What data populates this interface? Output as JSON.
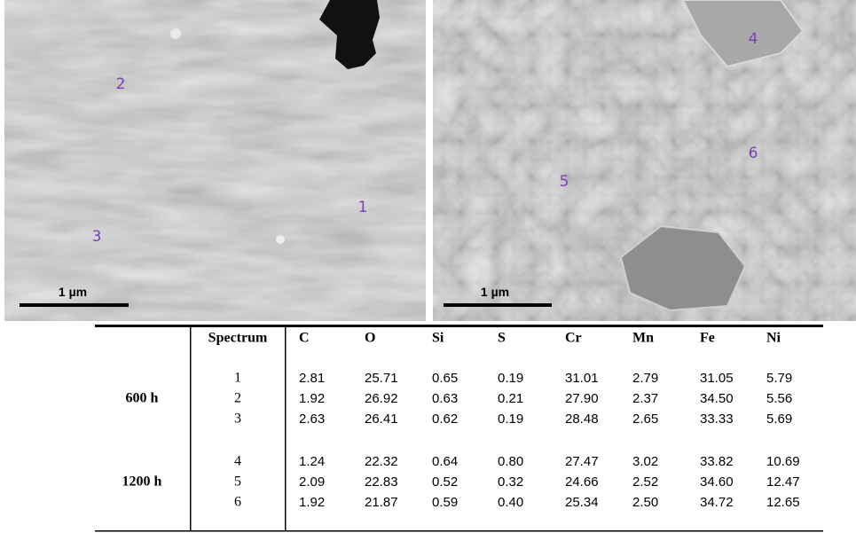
{
  "images": [
    {
      "scale_label": "1 µm",
      "markers": [
        "2",
        "1",
        "3"
      ]
    },
    {
      "scale_label": "1 µm",
      "markers": [
        "4",
        "6",
        "5"
      ]
    }
  ],
  "table": {
    "header": [
      "Spectrum",
      "C",
      "O",
      "Si",
      "S",
      "Cr",
      "Mn",
      "Fe",
      "Ni"
    ],
    "groups": [
      {
        "label": "600 h",
        "rows": [
          [
            "1",
            "2.81",
            "25.71",
            "0.65",
            "0.19",
            "31.01",
            "2.79",
            "31.05",
            "5.79"
          ],
          [
            "2",
            "1.92",
            "26.92",
            "0.63",
            "0.21",
            "27.90",
            "2.37",
            "34.50",
            "5.56"
          ],
          [
            "3",
            "2.63",
            "26.41",
            "0.62",
            "0.19",
            "28.48",
            "2.65",
            "33.33",
            "5.69"
          ]
        ]
      },
      {
        "label": "1200 h",
        "rows": [
          [
            "4",
            "1.24",
            "22.32",
            "0.64",
            "0.80",
            "27.47",
            "3.02",
            "33.82",
            "10.69"
          ],
          [
            "5",
            "2.09",
            "22.83",
            "0.52",
            "0.32",
            "24.66",
            "2.52",
            "34.60",
            "12.47"
          ],
          [
            "6",
            "1.92",
            "21.87",
            "0.59",
            "0.40",
            "25.34",
            "2.50",
            "34.72",
            "12.65"
          ]
        ]
      }
    ]
  }
}
